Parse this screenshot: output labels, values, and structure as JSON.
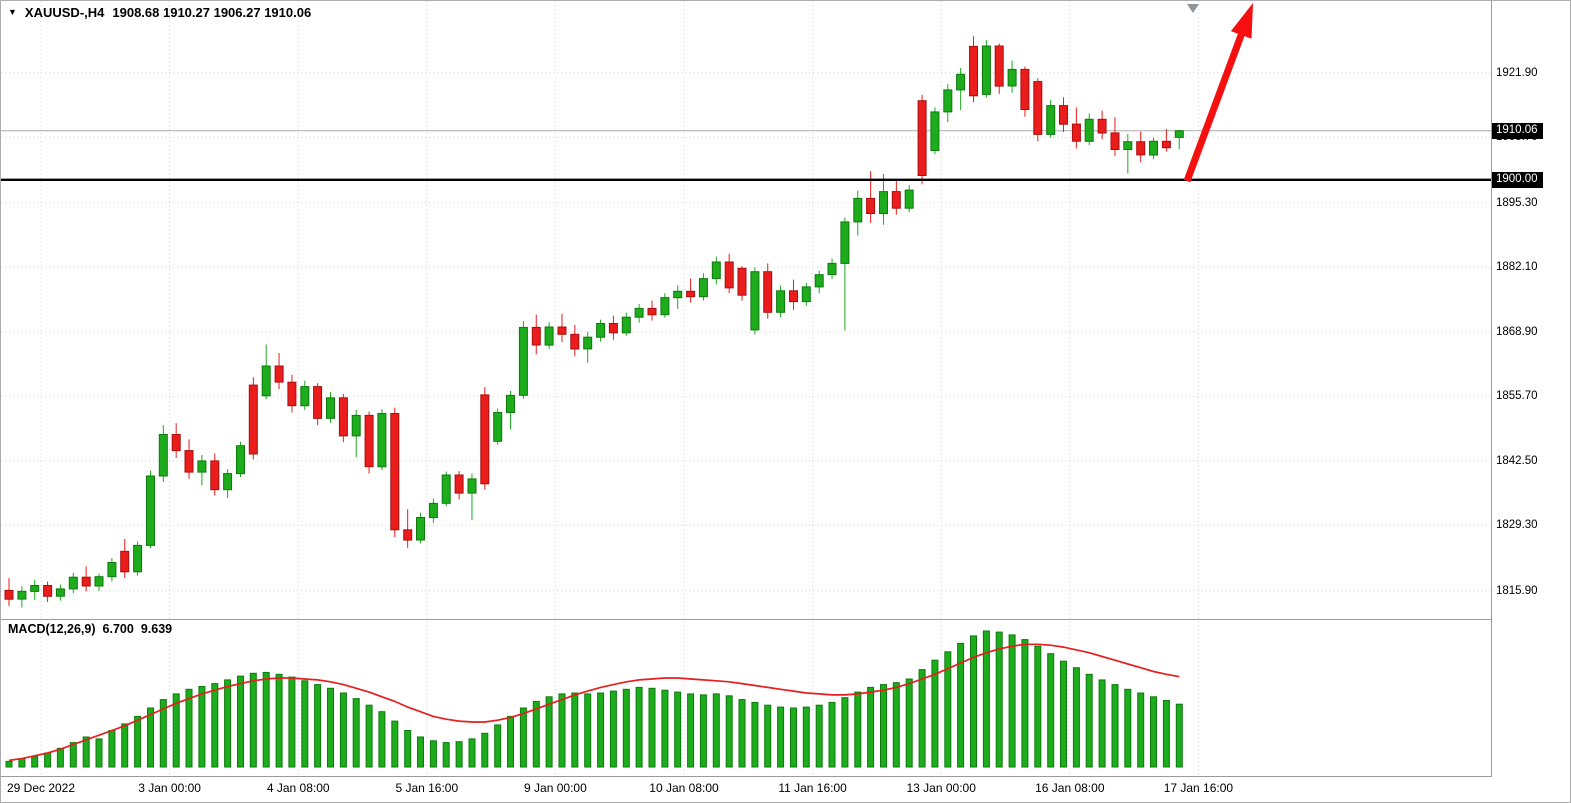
{
  "window": {
    "symbol_label": "XAUUSD-,H4",
    "ohlc": "1908.68 1910.27 1906.27 1910.06"
  },
  "icons": {
    "dropdown": "▼",
    "shift_marker": "▼"
  },
  "chart_data": {
    "type": "candlestick",
    "symbol": "XAUUSD-",
    "timeframe": "H4",
    "title": "XAUUSD-,H4  1908.68 1910.27 1906.27 1910.06",
    "current_price": 1910.06,
    "horizontal_level": 1900.0,
    "price_tags": {
      "current": "1910.06",
      "level": "1900.00"
    },
    "price_axis_labels": [
      1921.9,
      1908.7,
      1895.3,
      1882.1,
      1868.9,
      1855.7,
      1842.5,
      1829.3,
      1815.9
    ],
    "time_labels": [
      "29 Dec 2022",
      "3 Jan 00:00",
      "4 Jan 08:00",
      "5 Jan 16:00",
      "9 Jan 00:00",
      "10 Jan 08:00",
      "11 Jan 16:00",
      "13 Jan 00:00",
      "16 Jan 08:00",
      "17 Jan 16:00"
    ],
    "annotations": {
      "trend_arrow": "up"
    },
    "ylim_main": [
      1810.0,
      1936.6
    ],
    "grid": "dotted",
    "candles": [
      [
        1816.0,
        1818.5,
        1812.8,
        1814.2
      ],
      [
        1814.2,
        1816.8,
        1812.5,
        1815.8
      ],
      [
        1815.8,
        1818.2,
        1814.0,
        1817.0
      ],
      [
        1817.0,
        1817.8,
        1813.6,
        1814.8
      ],
      [
        1814.8,
        1817.2,
        1813.9,
        1816.3
      ],
      [
        1816.3,
        1819.6,
        1815.4,
        1818.7
      ],
      [
        1818.7,
        1820.9,
        1815.8,
        1816.9
      ],
      [
        1816.9,
        1819.4,
        1815.9,
        1818.8
      ],
      [
        1818.8,
        1822.6,
        1817.8,
        1821.7
      ],
      [
        1824.0,
        1826.5,
        1818.5,
        1819.8
      ],
      [
        1819.8,
        1826.0,
        1819.0,
        1825.2
      ],
      [
        1825.2,
        1840.5,
        1824.6,
        1839.4
      ],
      [
        1839.4,
        1849.8,
        1838.2,
        1847.9
      ],
      [
        1847.9,
        1850.2,
        1843.1,
        1844.6
      ],
      [
        1844.6,
        1846.9,
        1838.8,
        1840.2
      ],
      [
        1840.2,
        1843.7,
        1837.5,
        1842.5
      ],
      [
        1842.5,
        1844.0,
        1835.4,
        1836.6
      ],
      [
        1836.6,
        1840.8,
        1834.9,
        1839.9
      ],
      [
        1839.9,
        1846.4,
        1839.2,
        1845.6
      ],
      [
        1858.0,
        1859.6,
        1842.8,
        1843.9
      ],
      [
        1855.8,
        1866.3,
        1855.1,
        1861.9
      ],
      [
        1861.9,
        1864.6,
        1857.2,
        1858.6
      ],
      [
        1858.6,
        1860.1,
        1852.4,
        1853.8
      ],
      [
        1853.8,
        1858.9,
        1852.9,
        1857.7
      ],
      [
        1857.7,
        1858.4,
        1849.8,
        1851.2
      ],
      [
        1851.2,
        1856.6,
        1850.3,
        1855.4
      ],
      [
        1855.4,
        1856.2,
        1846.3,
        1847.6
      ],
      [
        1847.6,
        1852.9,
        1843.2,
        1851.8
      ],
      [
        1851.8,
        1852.6,
        1839.9,
        1841.3
      ],
      [
        1841.3,
        1853.1,
        1840.6,
        1852.2
      ],
      [
        1852.2,
        1853.4,
        1826.9,
        1828.4
      ],
      [
        1828.4,
        1832.6,
        1824.7,
        1826.3
      ],
      [
        1826.3,
        1831.9,
        1825.6,
        1830.9
      ],
      [
        1830.9,
        1834.8,
        1829.8,
        1833.8
      ],
      [
        1833.8,
        1840.3,
        1833.2,
        1839.6
      ],
      [
        1839.6,
        1840.4,
        1834.6,
        1835.9
      ],
      [
        1835.9,
        1839.9,
        1830.4,
        1838.8
      ],
      [
        1856.0,
        1857.6,
        1836.6,
        1837.8
      ],
      [
        1846.5,
        1853.2,
        1845.8,
        1852.4
      ],
      [
        1852.4,
        1856.8,
        1848.9,
        1855.9
      ],
      [
        1855.9,
        1871.1,
        1855.2,
        1869.8
      ],
      [
        1869.8,
        1872.4,
        1864.3,
        1866.2
      ],
      [
        1866.2,
        1870.9,
        1865.4,
        1869.9
      ],
      [
        1869.9,
        1872.6,
        1866.8,
        1868.4
      ],
      [
        1868.4,
        1870.3,
        1863.9,
        1865.4
      ],
      [
        1865.4,
        1868.9,
        1862.6,
        1867.8
      ],
      [
        1867.8,
        1871.4,
        1866.9,
        1870.6
      ],
      [
        1870.6,
        1872.2,
        1867.3,
        1868.7
      ],
      [
        1868.7,
        1872.8,
        1868.1,
        1871.9
      ],
      [
        1871.9,
        1874.6,
        1870.8,
        1873.7
      ],
      [
        1873.7,
        1875.3,
        1871.2,
        1872.4
      ],
      [
        1872.4,
        1876.8,
        1871.8,
        1875.9
      ],
      [
        1875.9,
        1878.4,
        1873.6,
        1877.2
      ],
      [
        1877.2,
        1879.8,
        1874.9,
        1876.1
      ],
      [
        1876.1,
        1880.9,
        1875.3,
        1879.8
      ],
      [
        1879.8,
        1884.3,
        1878.6,
        1883.2
      ],
      [
        1883.2,
        1884.9,
        1876.8,
        1877.9
      ],
      [
        1881.9,
        1882.4,
        1875.3,
        1876.4
      ],
      [
        1869.3,
        1882.1,
        1868.4,
        1881.2
      ],
      [
        1881.2,
        1882.9,
        1871.6,
        1872.9
      ],
      [
        1872.9,
        1878.4,
        1871.9,
        1877.3
      ],
      [
        1877.3,
        1879.6,
        1873.4,
        1875.1
      ],
      [
        1875.1,
        1878.9,
        1874.2,
        1878.1
      ],
      [
        1878.1,
        1881.4,
        1876.8,
        1880.6
      ],
      [
        1880.6,
        1883.9,
        1879.7,
        1882.9
      ],
      [
        1882.9,
        1892.3,
        1869.2,
        1891.4
      ],
      [
        1891.4,
        1897.8,
        1888.6,
        1896.2
      ],
      [
        1896.2,
        1901.8,
        1891.2,
        1893.1
      ],
      [
        1893.1,
        1901.2,
        1890.8,
        1897.6
      ],
      [
        1897.6,
        1899.8,
        1892.9,
        1894.2
      ],
      [
        1894.2,
        1898.9,
        1893.4,
        1897.9
      ],
      [
        1916.2,
        1917.4,
        1899.1,
        1900.9
      ],
      [
        1906.0,
        1914.8,
        1905.2,
        1913.9
      ],
      [
        1913.9,
        1919.6,
        1911.8,
        1918.4
      ],
      [
        1918.4,
        1922.9,
        1914.3,
        1921.6
      ],
      [
        1927.3,
        1929.4,
        1915.9,
        1917.2
      ],
      [
        1917.5,
        1928.6,
        1916.8,
        1927.4
      ],
      [
        1927.4,
        1927.9,
        1917.6,
        1919.2
      ],
      [
        1919.2,
        1924.4,
        1917.8,
        1922.6
      ],
      [
        1922.6,
        1923.2,
        1912.9,
        1914.4
      ],
      [
        1920.1,
        1920.8,
        1907.9,
        1909.3
      ],
      [
        1909.3,
        1916.4,
        1908.6,
        1915.2
      ],
      [
        1915.2,
        1916.9,
        1909.8,
        1911.4
      ],
      [
        1911.4,
        1914.8,
        1906.4,
        1907.9
      ],
      [
        1907.9,
        1913.6,
        1907.1,
        1912.4
      ],
      [
        1912.4,
        1914.2,
        1908.3,
        1909.6
      ],
      [
        1909.6,
        1912.8,
        1904.9,
        1906.2
      ],
      [
        1906.2,
        1909.4,
        1901.3,
        1907.8
      ],
      [
        1907.8,
        1909.9,
        1903.6,
        1905.1
      ],
      [
        1905.1,
        1908.6,
        1904.2,
        1907.9
      ],
      [
        1907.9,
        1910.4,
        1905.8,
        1906.6
      ],
      [
        1908.68,
        1910.27,
        1906.27,
        1910.06
      ]
    ],
    "macd": {
      "label": "MACD(12,26,9)",
      "main_value": "6.700",
      "signal_value": "9.639",
      "axis_max": "14.523",
      "axis_min": "0",
      "histogram": [
        0.6,
        0.9,
        1.1,
        1.5,
        2.0,
        2.6,
        3.2,
        3.0,
        3.9,
        4.6,
        5.4,
        6.3,
        7.2,
        7.8,
        8.3,
        8.6,
        8.9,
        9.3,
        9.7,
        10.0,
        10.1,
        9.9,
        9.6,
        9.2,
        8.8,
        8.4,
        7.9,
        7.3,
        6.6,
        5.9,
        4.9,
        3.9,
        3.2,
        2.8,
        2.6,
        2.7,
        3.0,
        3.6,
        4.5,
        5.4,
        6.3,
        7.0,
        7.5,
        7.8,
        7.9,
        7.8,
        7.9,
        8.1,
        8.3,
        8.5,
        8.4,
        8.2,
        8.0,
        7.8,
        7.7,
        7.8,
        7.6,
        7.2,
        6.9,
        6.6,
        6.4,
        6.3,
        6.4,
        6.6,
        6.9,
        7.4,
        8.0,
        8.5,
        8.8,
        9.0,
        9.4,
        10.4,
        11.4,
        12.3,
        13.2,
        14.0,
        14.52,
        14.4,
        14.1,
        13.6,
        12.9,
        12.1,
        11.3,
        10.6,
        9.9,
        9.3,
        8.8,
        8.3,
        7.9,
        7.5,
        7.1,
        6.7
      ],
      "signal": [
        0.7,
        0.9,
        1.2,
        1.5,
        1.9,
        2.4,
        2.9,
        3.4,
        3.9,
        4.4,
        5.0,
        5.6,
        6.2,
        6.8,
        7.3,
        7.8,
        8.2,
        8.6,
        8.9,
        9.2,
        9.4,
        9.5,
        9.5,
        9.4,
        9.3,
        9.1,
        8.8,
        8.4,
        8.0,
        7.5,
        7.0,
        6.4,
        5.9,
        5.4,
        5.1,
        4.9,
        4.8,
        4.8,
        5.0,
        5.3,
        5.7,
        6.2,
        6.7,
        7.2,
        7.7,
        8.1,
        8.5,
        8.8,
        9.1,
        9.3,
        9.4,
        9.5,
        9.5,
        9.4,
        9.3,
        9.2,
        9.1,
        8.9,
        8.7,
        8.5,
        8.3,
        8.1,
        7.9,
        7.8,
        7.7,
        7.7,
        7.8,
        8.0,
        8.2,
        8.5,
        8.9,
        9.4,
        9.9,
        10.5,
        11.1,
        11.7,
        12.2,
        12.6,
        12.9,
        13.1,
        13.1,
        13.0,
        12.8,
        12.5,
        12.2,
        11.8,
        11.4,
        11.0,
        10.6,
        10.2,
        9.9,
        9.64
      ]
    },
    "colors": {
      "bull": "#1cac1c",
      "bull_edge": "#0e7a0e",
      "bear": "#eb1c1c",
      "bear_edge": "#a80f0f",
      "signal": "#e61e1e",
      "arrow": "#f50f0f",
      "grid": "#d4d4d4",
      "bid_line": "#ababab",
      "separator": "#9a9a9a",
      "level_line": "#000000",
      "background": "#ffffff"
    }
  }
}
